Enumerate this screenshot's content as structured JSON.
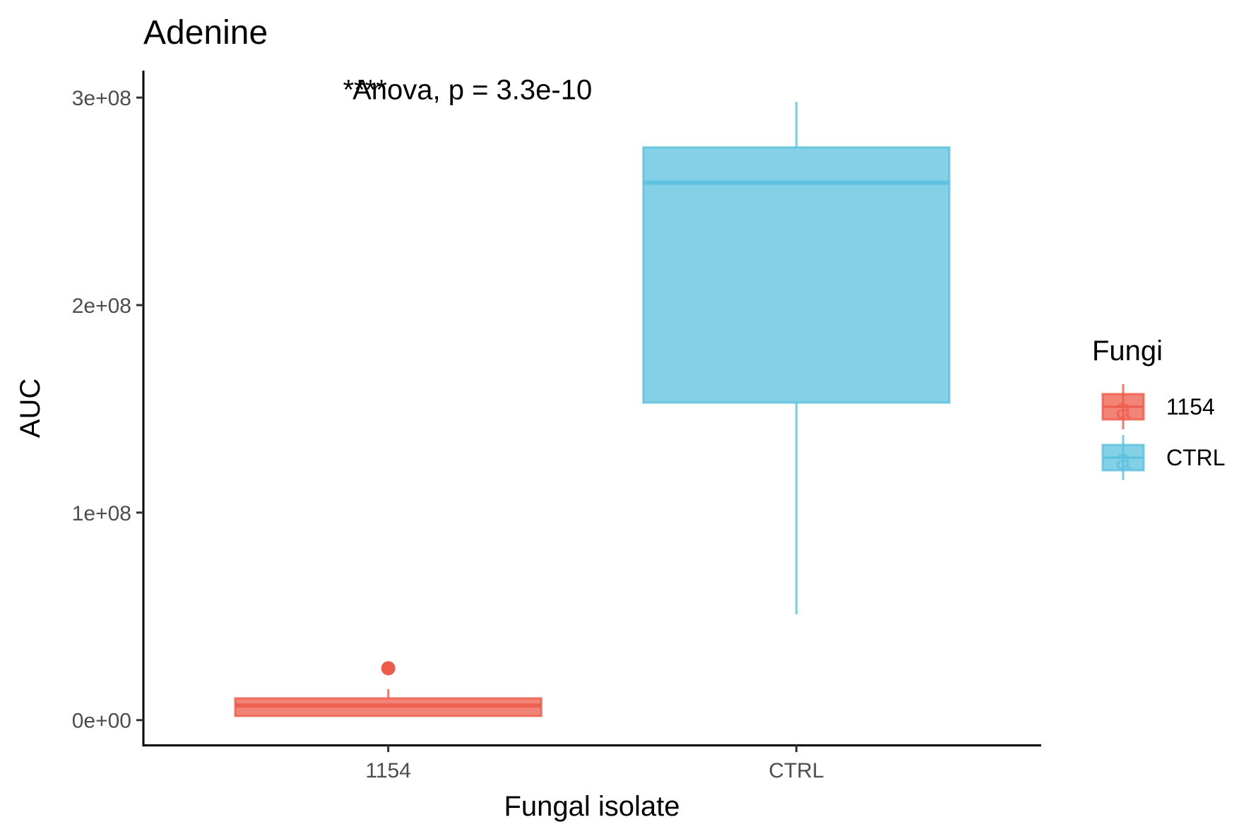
{
  "chart_data": {
    "type": "box",
    "title": "Adenine",
    "xlabel": "Fungal isolate",
    "ylabel": "AUC",
    "ylim": [
      -12000000,
      313000000
    ],
    "y_ticks": [
      0,
      100000000,
      200000000,
      300000000
    ],
    "y_tick_labels": [
      "0e+00",
      "1e+08",
      "2e+08",
      "3e+08"
    ],
    "categories": [
      "1154",
      "CTRL"
    ],
    "annotations": [
      {
        "text": "Anova, p = 3.3e-10",
        "x": "1154",
        "y": 304000000
      },
      {
        "text": "****",
        "x": "1154",
        "y": 304000000
      }
    ],
    "series": [
      {
        "name": "1154",
        "category": "1154",
        "color": "#ED5B4A",
        "whisker_low": 2000000,
        "q1": 2000000,
        "median": 7000000,
        "q3": 10500000,
        "whisker_high": 15000000,
        "outliers": [
          25000000
        ]
      },
      {
        "name": "CTRL",
        "category": "CTRL",
        "color": "#5BC0DE",
        "whisker_low": 51000000,
        "q1": 153000000,
        "median": 259000000,
        "q3": 276000000,
        "whisker_high": 298000000,
        "outliers": []
      }
    ],
    "legend": {
      "title": "Fungi",
      "position": "right",
      "items": [
        {
          "label": "1154",
          "color": "#ED5B4A",
          "key_glyph": "a"
        },
        {
          "label": "CTRL",
          "color": "#5BC0DE",
          "key_glyph": "a"
        }
      ]
    },
    "grid": false
  }
}
